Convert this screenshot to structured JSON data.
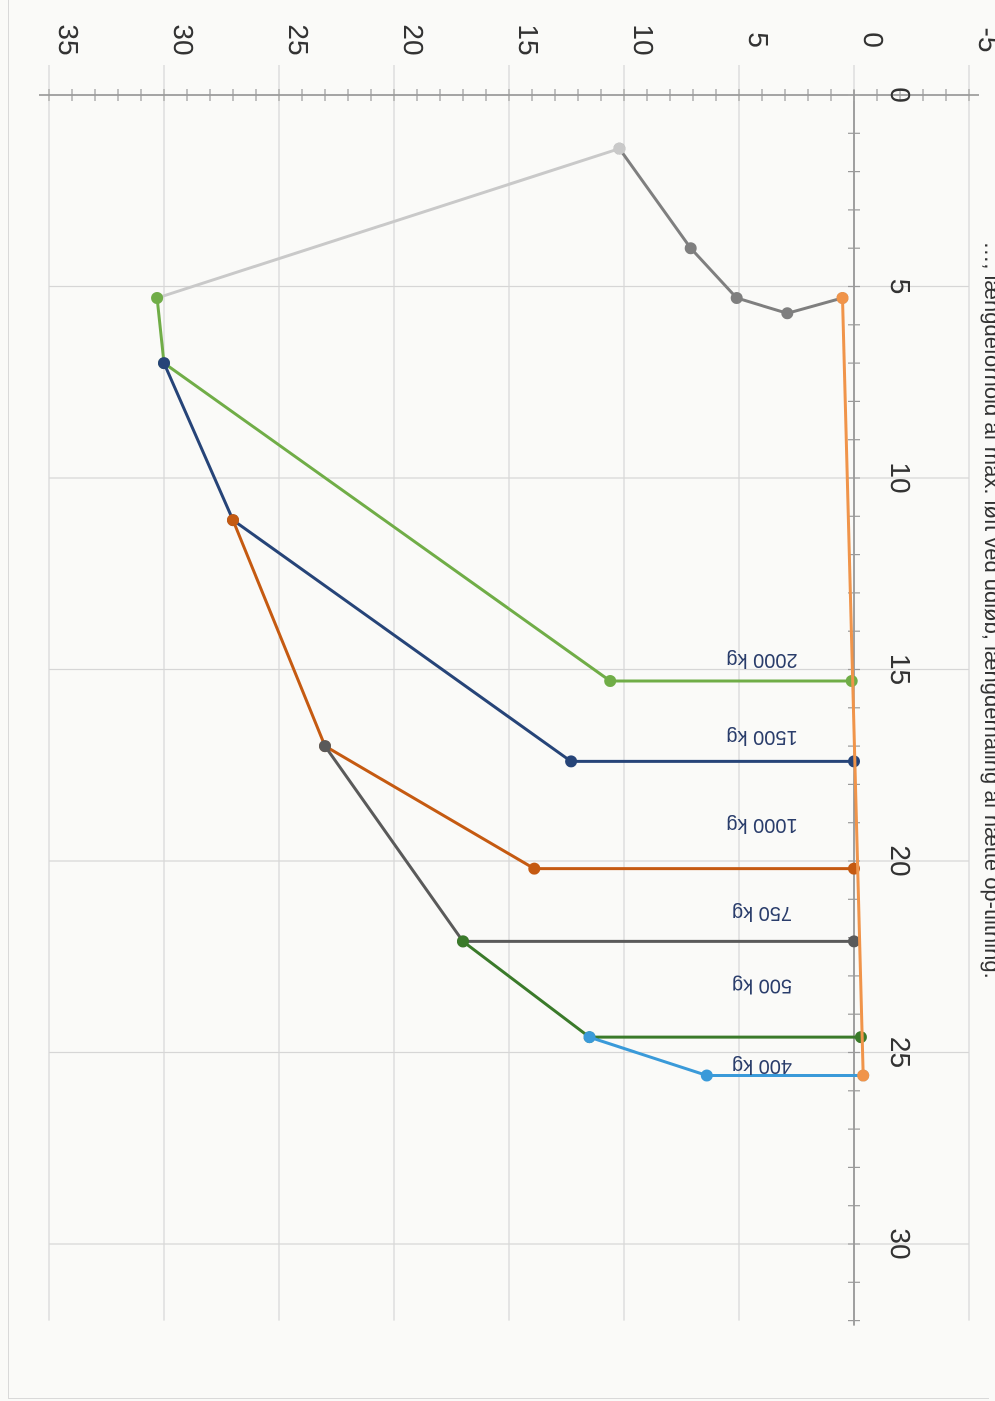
{
  "caption": "…, længdeforhold af max. løft ved udløb, længdemåling af hætte op-tiltning.",
  "chart_data": {
    "type": "line",
    "title": "",
    "xlabel": "",
    "ylabel": "",
    "xlim": [
      -5,
      35
    ],
    "ylim": [
      0,
      32
    ],
    "x_ticks": [
      "-5",
      "0",
      "5",
      "10",
      "15",
      "20",
      "25",
      "30",
      "35"
    ],
    "y_ticks": [
      "0",
      "5",
      "10",
      "15",
      "20",
      "25",
      "30"
    ],
    "series": [
      {
        "name": "",
        "color": "#7f7f7f",
        "points": [
          [
            0.5,
            5.3
          ],
          [
            2.9,
            5.7
          ],
          [
            5.1,
            5.3
          ],
          [
            7.1,
            4.0
          ],
          [
            10.2,
            1.4
          ]
        ]
      },
      {
        "name": "",
        "color": "#c9c9c9",
        "points": [
          [
            10.2,
            1.4
          ],
          [
            30.3,
            5.3
          ]
        ]
      },
      {
        "name": "",
        "color": "#70ad47",
        "points": [
          [
            30.3,
            5.3
          ],
          [
            30.0,
            7.0
          ],
          [
            10.6,
            15.3
          ],
          [
            0.1,
            15.3
          ]
        ]
      },
      {
        "name": "",
        "color": "#264478",
        "points": [
          [
            30.0,
            7.0
          ],
          [
            27.0,
            11.1
          ],
          [
            12.3,
            17.4
          ],
          [
            0.0,
            17.4
          ]
        ]
      },
      {
        "name": "",
        "color": "#c55a11",
        "points": [
          [
            27.0,
            11.1
          ],
          [
            23.0,
            17.0
          ],
          [
            13.9,
            20.2
          ],
          [
            0.0,
            20.2
          ]
        ]
      },
      {
        "name": "",
        "color": "#5a5a5a",
        "points": [
          [
            23.0,
            17.0
          ],
          [
            17.0,
            22.1
          ],
          [
            0.0,
            22.1
          ]
        ]
      },
      {
        "name": "",
        "color": "#3a7a2a",
        "points": [
          [
            17.0,
            22.1
          ],
          [
            11.5,
            24.6
          ],
          [
            -0.3,
            24.6
          ]
        ]
      },
      {
        "name": "",
        "color": "#3a9ad9",
        "points": [
          [
            11.5,
            24.6
          ],
          [
            6.4,
            25.6
          ],
          [
            -0.4,
            25.6
          ]
        ]
      },
      {
        "name": "",
        "color": "#f0944a",
        "points": [
          [
            0.5,
            5.3
          ],
          [
            -0.4,
            25.6
          ]
        ]
      }
    ],
    "annotations": [
      {
        "text": "2000 kg",
        "x": 4.0,
        "y": 14.6
      },
      {
        "text": "1500 kg",
        "x": 4.0,
        "y": 16.6
      },
      {
        "text": "1000 kg",
        "x": 4.0,
        "y": 18.9
      },
      {
        "text": "750 kg",
        "x": 4.0,
        "y": 21.2
      },
      {
        "text": "500 kg",
        "x": 4.0,
        "y": 23.1
      },
      {
        "text": "400 kg",
        "x": 4.0,
        "y": 25.2
      }
    ]
  }
}
